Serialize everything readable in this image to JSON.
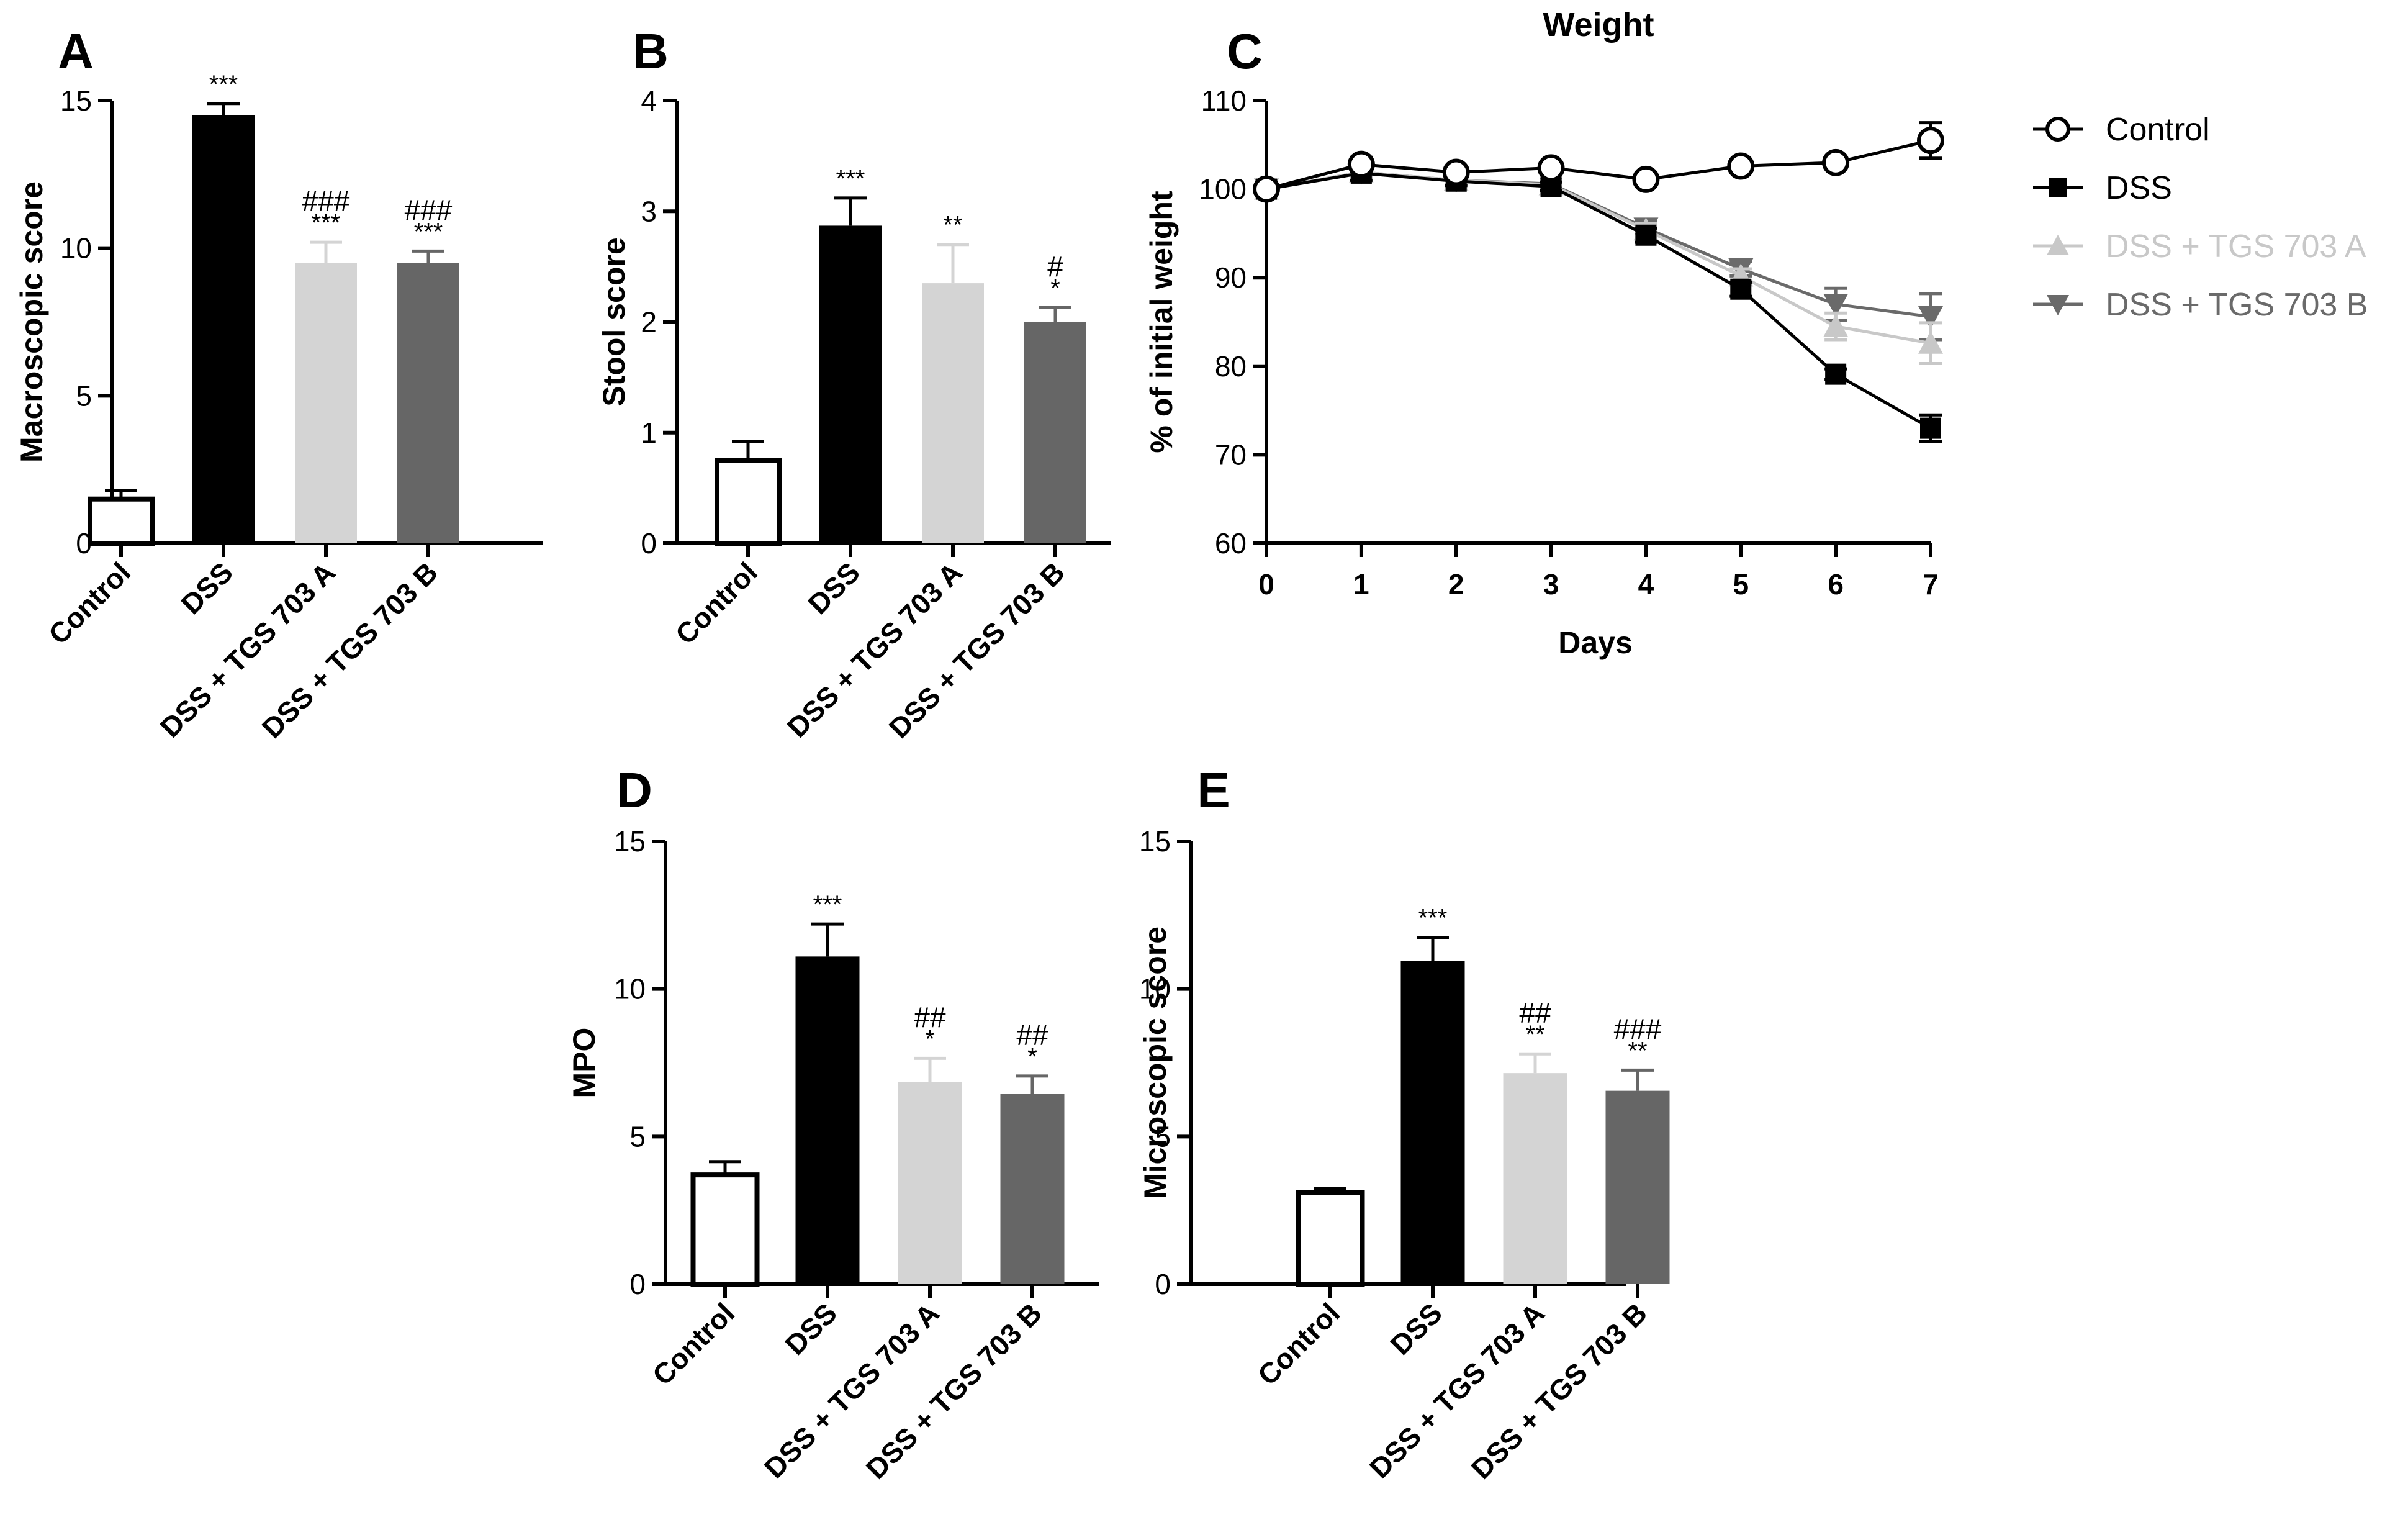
{
  "chart_data": [
    {
      "panel": "A",
      "type": "bar",
      "title": "",
      "ylabel": "Macroscopic score",
      "xlabel": "",
      "ylim": [
        0,
        15
      ],
      "yticks": [
        0,
        5,
        10,
        15
      ],
      "categories": [
        "Control",
        "DSS",
        "DSS + TGS 703 A",
        "DSS + TGS 703 B"
      ],
      "values": [
        1.5,
        14.5,
        9.5,
        9.5
      ],
      "errors": [
        0.3,
        0.4,
        0.7,
        0.4
      ],
      "fills": [
        "#ffffff",
        "#000000",
        "#d4d4d4",
        "#666666"
      ],
      "sig_star": [
        "",
        "***",
        "***",
        "***"
      ],
      "sig_hash": [
        "",
        "",
        "###",
        "###"
      ]
    },
    {
      "panel": "B",
      "type": "bar",
      "title": "",
      "ylabel": "Stool score",
      "xlabel": "",
      "ylim": [
        0,
        4
      ],
      "yticks": [
        0,
        1,
        2,
        3,
        4
      ],
      "categories": [
        "Control",
        "DSS",
        "DSS + TGS 703 A",
        "DSS + TGS 703 B"
      ],
      "values": [
        0.75,
        2.87,
        2.35,
        2.0
      ],
      "errors": [
        0.17,
        0.25,
        0.35,
        0.13
      ],
      "fills": [
        "#ffffff",
        "#000000",
        "#d4d4d4",
        "#666666"
      ],
      "sig_star": [
        "",
        "***",
        "**",
        "*"
      ],
      "sig_hash": [
        "",
        "",
        "",
        "#"
      ]
    },
    {
      "panel": "C",
      "type": "line",
      "title": "Weight",
      "ylabel": "% of initial weight",
      "xlabel": "Days",
      "ylim": [
        60,
        110
      ],
      "yticks": [
        60,
        70,
        80,
        90,
        100,
        110
      ],
      "xlim": [
        0,
        7
      ],
      "x": [
        0,
        1,
        2,
        3,
        4,
        5,
        6,
        7
      ],
      "legend_position": "right",
      "series": [
        {
          "name": "Control",
          "values": [
            100,
            102.8,
            101.9,
            102.4,
            101.1,
            102.6,
            103.0,
            105.5
          ],
          "errors": [
            0,
            0.8,
            0.6,
            0.6,
            0.6,
            0.6,
            0.7,
            2.0
          ],
          "marker": "circle-open",
          "color": "#000000"
        },
        {
          "name": "DSS",
          "values": [
            100,
            101.8,
            100.9,
            100.3,
            94.8,
            88.7,
            79.1,
            73.0
          ],
          "errors": [
            0,
            0.8,
            0.5,
            0.5,
            0.8,
            0.8,
            0.6,
            1.5
          ],
          "marker": "square",
          "color": "#000000"
        },
        {
          "name": "DSS + TGS 703 A",
          "values": [
            100,
            101.9,
            101.0,
            100.5,
            95.4,
            90.2,
            84.5,
            82.6
          ],
          "errors": [
            0,
            0.6,
            0.5,
            0.5,
            0.7,
            0.8,
            1.5,
            2.3
          ],
          "marker": "triangle-up",
          "color": "#c8c8c8"
        },
        {
          "name": "DSS + TGS 703 B",
          "values": [
            100,
            101.9,
            101.0,
            100.6,
            95.6,
            91.0,
            87.0,
            85.6
          ],
          "errors": [
            0,
            0.6,
            0.5,
            0.5,
            0.7,
            0.8,
            1.8,
            2.6
          ],
          "marker": "triangle-down",
          "color": "#6a6a6a"
        }
      ]
    },
    {
      "panel": "D",
      "type": "bar",
      "title": "",
      "ylabel": "MPO",
      "xlabel": "",
      "ylim": [
        0,
        15
      ],
      "yticks": [
        0,
        5,
        10,
        15
      ],
      "categories": [
        "Control",
        "DSS",
        "DSS + TGS 703 A",
        "DSS + TGS 703 B"
      ],
      "values": [
        3.7,
        11.1,
        6.85,
        6.45
      ],
      "errors": [
        0.45,
        1.1,
        0.8,
        0.6
      ],
      "fills": [
        "#ffffff",
        "#000000",
        "#d4d4d4",
        "#666666"
      ],
      "sig_star": [
        "",
        "***",
        "*",
        "*"
      ],
      "sig_hash": [
        "",
        "",
        "##",
        "##"
      ]
    },
    {
      "panel": "E",
      "type": "bar",
      "title": "",
      "ylabel": "Microscopic score",
      "xlabel": "",
      "ylim": [
        0,
        15
      ],
      "yticks": [
        0,
        5,
        10,
        15
      ],
      "categories": [
        "Control",
        "DSS",
        "DSS + TGS 703 A",
        "DSS + TGS 703 B"
      ],
      "values": [
        3.1,
        10.95,
        7.15,
        6.55
      ],
      "errors": [
        0.15,
        0.8,
        0.65,
        0.7
      ],
      "fills": [
        "#ffffff",
        "#000000",
        "#d4d4d4",
        "#666666"
      ],
      "sig_star": [
        "",
        "***",
        "**",
        "**"
      ],
      "sig_hash": [
        "",
        "",
        "##",
        "###"
      ]
    }
  ]
}
